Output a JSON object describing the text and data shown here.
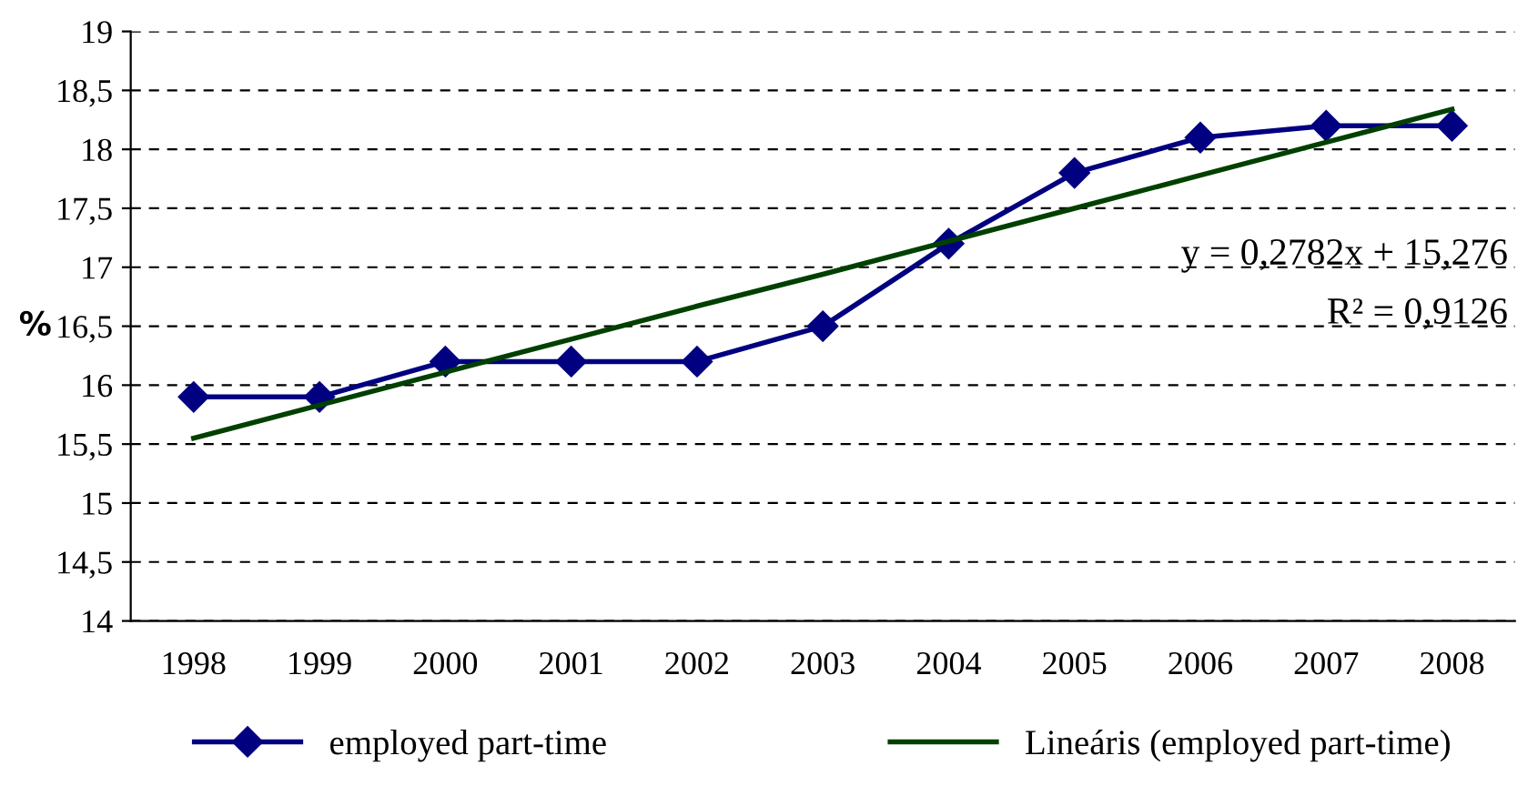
{
  "chart_data": {
    "type": "line",
    "ylabel": "%",
    "categories": [
      "1998",
      "1999",
      "2000",
      "2001",
      "2002",
      "2003",
      "2004",
      "2005",
      "2006",
      "2007",
      "2008"
    ],
    "series": [
      {
        "name": "employed part-time",
        "color": "#000080",
        "marker": "diamond",
        "values": [
          15.9,
          15.9,
          16.2,
          16.2,
          16.2,
          16.5,
          17.2,
          17.8,
          18.1,
          18.2,
          18.2
        ]
      },
      {
        "name": "Lineáris (employed part-time)",
        "color": "#004000",
        "marker": "none",
        "values": [
          15.55,
          15.83,
          16.11,
          16.39,
          16.67,
          16.94,
          17.22,
          17.5,
          17.78,
          18.06,
          18.34
        ]
      }
    ],
    "ylim": [
      14,
      19
    ],
    "yticks": [
      14,
      {
        "value": 14.5,
        "label": "14,5"
      },
      15,
      {
        "value": 15.5,
        "label": "15,5"
      },
      16,
      {
        "value": 16.5,
        "label": "16,5"
      },
      17,
      {
        "value": 17.5,
        "label": "17,5"
      },
      18,
      {
        "value": 18.5,
        "label": "18,5"
      },
      19
    ],
    "grid": "y",
    "legend": "bottom",
    "annotations": [
      "y = 0,2782x + 15,276",
      "R² = 0,9126"
    ]
  }
}
